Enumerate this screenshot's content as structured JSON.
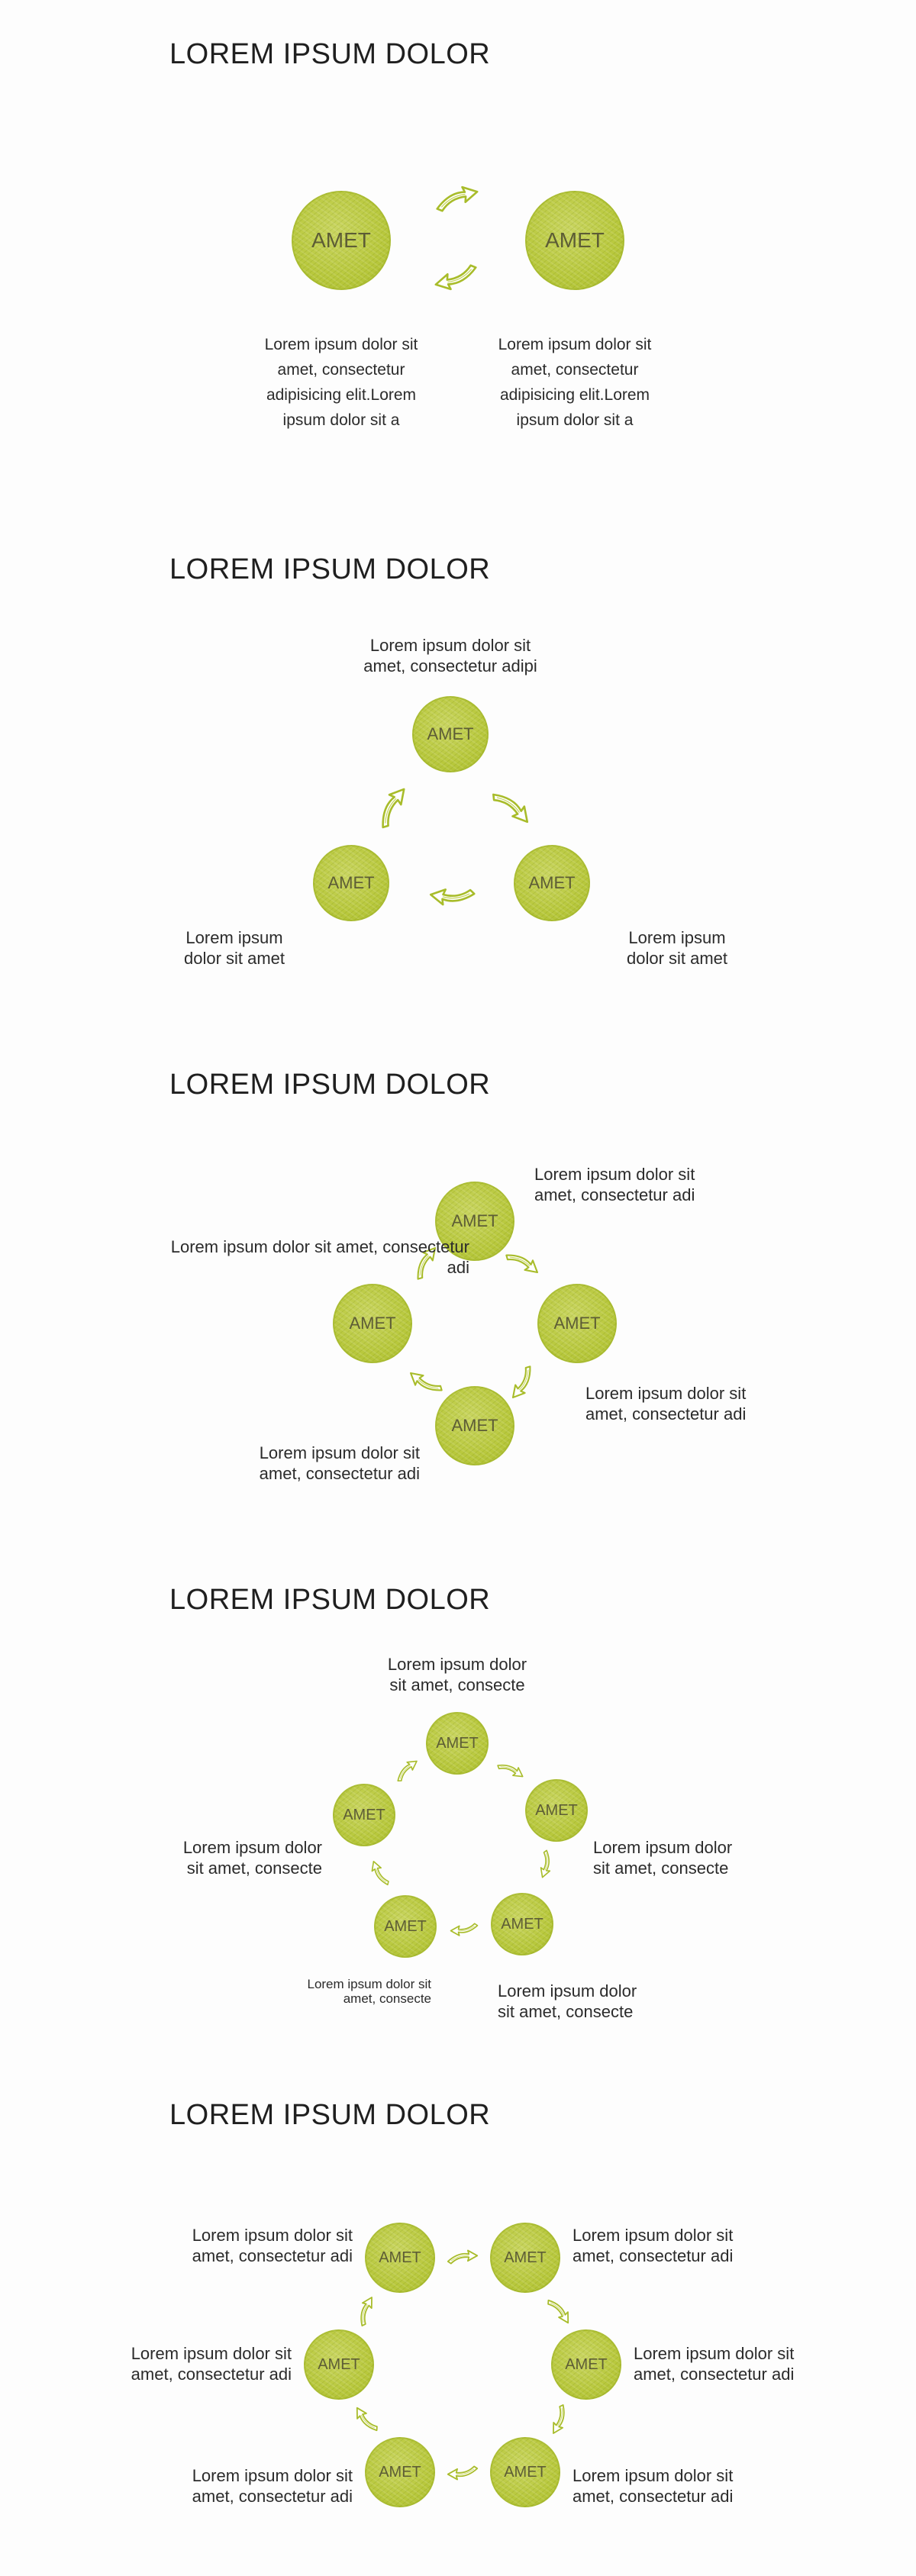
{
  "circle_label": "AMET",
  "panels": [
    {
      "title": "LOREM IPSUM DOLOR",
      "descriptions": [
        "Lorem ipsum dolor sit amet, consectetur adipisicing elit.Lorem ipsum dolor sit a",
        "Lorem ipsum dolor sit amet, consectetur adipisicing elit.Lorem ipsum dolor sit a"
      ]
    },
    {
      "title": "LOREM IPSUM DOLOR",
      "descriptions": [
        "Lorem ipsum dolor sit amet, consectetur adipi",
        "Lorem ipsum dolor sit amet",
        "Lorem ipsum dolor sit amet"
      ]
    },
    {
      "title": "LOREM IPSUM DOLOR",
      "descriptions": [
        "Lorem ipsum dolor sit amet, consectetur adi",
        "Lorem ipsum dolor sit amet, consectetur adi",
        "Lorem ipsum dolor sit amet, consectetur adi",
        "Lorem ipsum dolor sit amet, consectetur adi"
      ]
    },
    {
      "title": "LOREM IPSUM DOLOR",
      "descriptions": [
        "Lorem ipsum dolor sit amet, consecte",
        "Lorem ipsum dolor sit amet, consecte",
        "Lorem ipsum dolor sit amet, consecte",
        "Lorem ipsum dolor sit amet, consecte",
        "Lorem ipsum dolor sit amet, consecte"
      ]
    },
    {
      "title": "LOREM IPSUM DOLOR",
      "descriptions": [
        "Lorem ipsum dolor sit amet, consectetur adi",
        "Lorem ipsum dolor sit amet, consectetur adi",
        "Lorem ipsum dolor sit amet, consectetur adi",
        "Lorem ipsum dolor sit amet, consectetur adi",
        "Lorem ipsum dolor sit amet, consectetur adi",
        "Lorem ipsum dolor sit amet, consectetur adi"
      ]
    }
  ],
  "colors": {
    "circle_fill": "#b8c83c",
    "arrow_stroke": "#a8bc2a",
    "label_text": "#5d5d35"
  },
  "icons": [
    "sketch-circle",
    "curved-arrow-icon"
  ]
}
